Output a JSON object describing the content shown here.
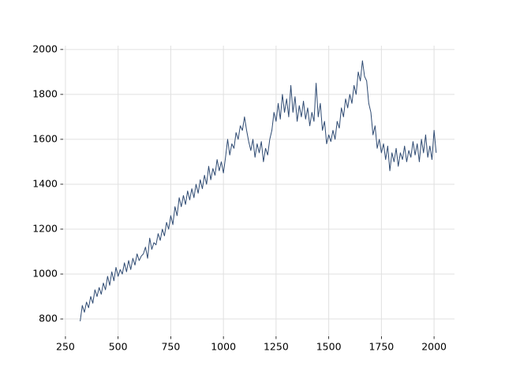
{
  "chart_data": {
    "type": "line",
    "color": "#2e4a72",
    "grid": true,
    "xlim": [
      239,
      2097
    ],
    "ylim": [
      723,
      2017
    ],
    "xticks": [
      250,
      500,
      750,
      1000,
      1250,
      1500,
      1750,
      2000
    ],
    "yticks": [
      800,
      1000,
      1200,
      1400,
      1600,
      1800,
      2000
    ],
    "x": [
      320,
      330,
      340,
      350,
      360,
      370,
      380,
      390,
      400,
      410,
      420,
      430,
      440,
      450,
      460,
      470,
      480,
      490,
      500,
      510,
      520,
      530,
      540,
      550,
      560,
      570,
      580,
      590,
      600,
      610,
      620,
      630,
      640,
      650,
      660,
      670,
      680,
      690,
      700,
      710,
      720,
      730,
      740,
      750,
      760,
      770,
      780,
      790,
      800,
      810,
      820,
      830,
      840,
      850,
      860,
      870,
      880,
      890,
      900,
      910,
      920,
      930,
      940,
      950,
      960,
      970,
      980,
      990,
      1000,
      1010,
      1020,
      1030,
      1040,
      1050,
      1060,
      1070,
      1080,
      1090,
      1100,
      1110,
      1120,
      1130,
      1140,
      1150,
      1160,
      1170,
      1180,
      1190,
      1200,
      1210,
      1220,
      1230,
      1240,
      1250,
      1260,
      1270,
      1280,
      1290,
      1300,
      1310,
      1320,
      1330,
      1340,
      1350,
      1360,
      1370,
      1380,
      1390,
      1400,
      1410,
      1420,
      1430,
      1440,
      1450,
      1460,
      1470,
      1480,
      1490,
      1500,
      1510,
      1520,
      1530,
      1540,
      1550,
      1560,
      1570,
      1580,
      1590,
      1600,
      1610,
      1620,
      1630,
      1640,
      1650,
      1660,
      1670,
      1680,
      1690,
      1700,
      1710,
      1720,
      1730,
      1740,
      1750,
      1760,
      1770,
      1780,
      1790,
      1800,
      1810,
      1820,
      1830,
      1840,
      1850,
      1860,
      1870,
      1880,
      1890,
      1900,
      1910,
      1920,
      1930,
      1940,
      1950,
      1960,
      1970,
      1980,
      1990,
      2000,
      2010
    ],
    "values": [
      790,
      860,
      830,
      875,
      850,
      900,
      870,
      930,
      900,
      940,
      910,
      960,
      930,
      990,
      950,
      1010,
      970,
      1030,
      990,
      1020,
      1000,
      1050,
      1010,
      1060,
      1020,
      1070,
      1040,
      1090,
      1060,
      1080,
      1090,
      1120,
      1070,
      1160,
      1110,
      1140,
      1130,
      1180,
      1150,
      1200,
      1170,
      1230,
      1200,
      1260,
      1220,
      1300,
      1260,
      1340,
      1300,
      1350,
      1310,
      1370,
      1330,
      1380,
      1340,
      1400,
      1360,
      1420,
      1380,
      1440,
      1400,
      1480,
      1420,
      1470,
      1440,
      1510,
      1460,
      1500,
      1450,
      1520,
      1600,
      1530,
      1580,
      1560,
      1630,
      1600,
      1660,
      1640,
      1700,
      1640,
      1590,
      1550,
      1600,
      1520,
      1580,
      1540,
      1590,
      1500,
      1560,
      1530,
      1600,
      1640,
      1720,
      1680,
      1760,
      1690,
      1800,
      1720,
      1780,
      1700,
      1840,
      1720,
      1790,
      1680,
      1750,
      1700,
      1770,
      1690,
      1740,
      1660,
      1720,
      1680,
      1850,
      1700,
      1760,
      1640,
      1680,
      1580,
      1620,
      1590,
      1640,
      1600,
      1680,
      1650,
      1740,
      1700,
      1780,
      1740,
      1800,
      1760,
      1840,
      1800,
      1900,
      1860,
      1950,
      1880,
      1860,
      1760,
      1720,
      1620,
      1660,
      1560,
      1600,
      1540,
      1580,
      1510,
      1570,
      1460,
      1540,
      1500,
      1560,
      1480,
      1540,
      1510,
      1570,
      1500,
      1550,
      1520,
      1590,
      1530,
      1580,
      1500,
      1600,
      1540,
      1620,
      1520,
      1570,
      1510,
      1640,
      1540
    ]
  }
}
